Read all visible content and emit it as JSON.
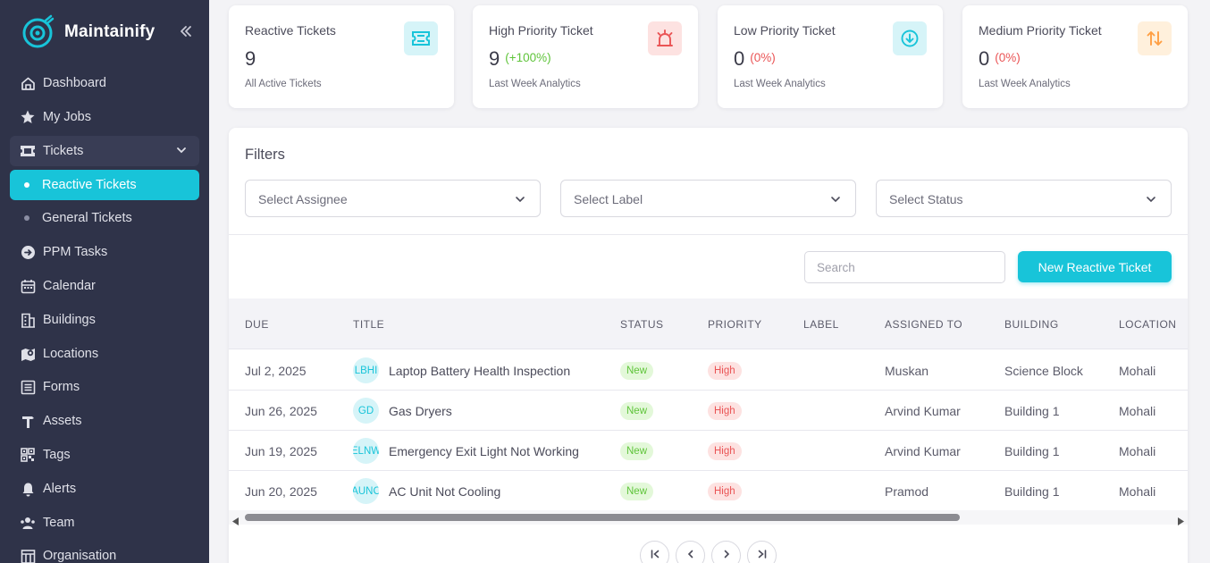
{
  "brand": {
    "name": "Maintainify"
  },
  "sidebar": {
    "items": [
      {
        "label": "Dashboard",
        "icon": "home-icon"
      },
      {
        "label": "My Jobs",
        "icon": "star-icon"
      },
      {
        "label": "Tickets",
        "icon": "ticket-icon",
        "expanded": true
      },
      {
        "label": "Reactive Tickets",
        "sub": true,
        "active": true
      },
      {
        "label": "General Tickets",
        "sub": true
      },
      {
        "label": "PPM Tasks",
        "icon": "arrow-circle-icon"
      },
      {
        "label": "Calendar",
        "icon": "calendar-icon"
      },
      {
        "label": "Buildings",
        "icon": "building-icon"
      },
      {
        "label": "Locations",
        "icon": "map-pin-icon"
      },
      {
        "label": "Forms",
        "icon": "form-icon"
      },
      {
        "label": "Assets",
        "icon": "hammer-icon"
      },
      {
        "label": "Tags",
        "icon": "qr-code-icon"
      },
      {
        "label": "Alerts",
        "icon": "bell-icon"
      },
      {
        "label": "Team",
        "icon": "team-icon"
      },
      {
        "label": "Organisation",
        "icon": "organisation-icon"
      }
    ]
  },
  "stats": [
    {
      "title": "Reactive Tickets",
      "value": "9",
      "change": "",
      "sub": "All Active Tickets",
      "icon": "ticket-icon",
      "color": "#18c4d9",
      "bg": "#d6f4f8"
    },
    {
      "title": "High Priority Ticket",
      "value": "9",
      "change": "(+100%)",
      "changeColor": "#5fc43a",
      "sub": "Last Week Analytics",
      "icon": "siren-icon",
      "color": "#ea5455",
      "bg": "#fde2e1"
    },
    {
      "title": "Low Priority Ticket",
      "value": "0",
      "change": "(0%)",
      "changeColor": "#ea5455",
      "sub": "Last Week Analytics",
      "icon": "arrow-down-circle-icon",
      "color": "#18c4d9",
      "bg": "#d6f4f8"
    },
    {
      "title": "Medium Priority Ticket",
      "value": "0",
      "change": "(0%)",
      "changeColor": "#ea5455",
      "sub": "Last Week Analytics",
      "icon": "sort-arrows-icon",
      "color": "#ff9f43",
      "bg": "#fff0dc"
    }
  ],
  "filters": {
    "title": "Filters",
    "assignee": "Select Assignee",
    "label": "Select Label",
    "status": "Select Status"
  },
  "search": {
    "placeholder": "Search"
  },
  "new_button": "New Reactive Ticket",
  "table": {
    "columns": [
      "DUE",
      "TITLE",
      "STATUS",
      "PRIORITY",
      "LABEL",
      "ASSIGNED TO",
      "BUILDING",
      "LOCATION"
    ],
    "rows": [
      {
        "due": "Jul 2, 2025",
        "initials": "LBHI",
        "title": "Laptop Battery Health Inspection",
        "status": "New",
        "priority": "High",
        "label": "",
        "assigned": "Muskan",
        "building": "Science Block",
        "location": "Mohali"
      },
      {
        "due": "Jun 26, 2025",
        "initials": "GD",
        "title": "Gas Dryers",
        "status": "New",
        "priority": "High",
        "label": "",
        "assigned": "Arvind Kumar",
        "building": "Building 1",
        "location": "Mohali"
      },
      {
        "due": "Jun 19, 2025",
        "initials": "ELNW",
        "title": "Emergency Exit Light Not Working",
        "status": "New",
        "priority": "High",
        "label": "",
        "assigned": "Arvind Kumar",
        "building": "Building 1",
        "location": "Mohali"
      },
      {
        "due": "Jun 20, 2025",
        "initials": "AUNC",
        "title": "AC Unit Not Cooling",
        "status": "New",
        "priority": "High",
        "label": "",
        "assigned": "Pramod",
        "building": "Building 1",
        "location": "Mohali"
      }
    ]
  }
}
